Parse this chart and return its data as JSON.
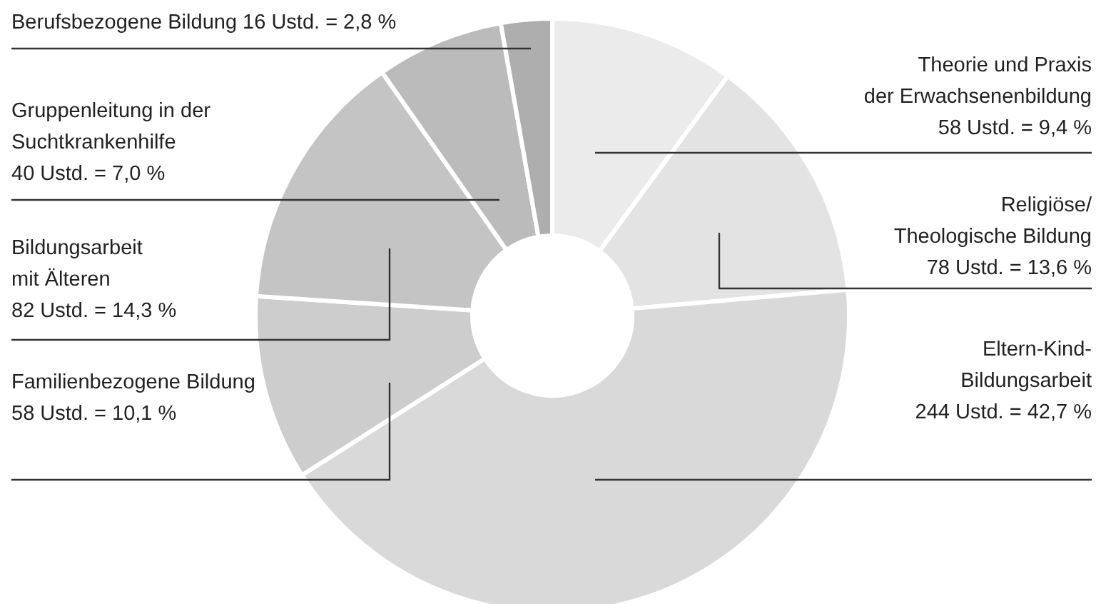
{
  "chart_data": {
    "type": "donut",
    "categories": [
      "Theorie und Praxis der Erwachsenenbildung",
      "Religiöse/ Theologische Bildung",
      "Eltern-Kind-Bildungsarbeit",
      "Familienbezogene Bildung",
      "Bildungsarbeit mit Älteren",
      "Gruppenleitung in der Suchtkrankenhilfe",
      "Berufsbezogene Bildung"
    ],
    "values": [
      58,
      78,
      244,
      58,
      82,
      40,
      16
    ],
    "value_labels": [
      "58 Ustd. = 9,4 %",
      "78 Ustd. = 13,6 %",
      "244 Ustd. = 42,7 %",
      "58 Ustd. = 10,1 %",
      "82 Ustd. = 14,3 %",
      "40 Ustd. = 7,0 %",
      "16 Ustd. = 2,8 %"
    ],
    "colors": [
      "#ebebeb",
      "#e3e3e3",
      "#d9d9d9",
      "#cdcdcd",
      "#c4c4c4",
      "#bbbbbb",
      "#aeaeae"
    ]
  }
}
